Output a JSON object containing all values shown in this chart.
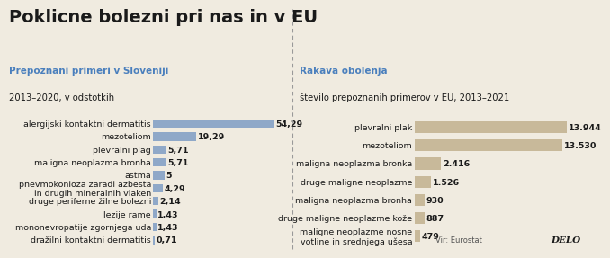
{
  "title": "Poklicne bolezni pri nas in v EU",
  "left_subtitle1": "Prepoznani primeri v Sloveniji",
  "left_subtitle2": "2013–2020, v odstotkih",
  "right_subtitle1": "Rakava obolenja",
  "right_subtitle2": "število prepoznanih primerov v EU, 2013–2021",
  "source": "Vir: Eurostat",
  "logo": "DELO",
  "left_labels": [
    "alergijski kontaktni dermatitis",
    "mezoteliom",
    "plevralni plag",
    "maligna neoplazma bronha",
    "astma",
    "pnevmokonioza zaradi azbesta\nin drugih mineralnih vlaken",
    "druge periferne žilne bolezni",
    "lezije rame",
    "mononevropatije zgornjega uda",
    "dražilni kontaktni dermatitis"
  ],
  "left_values": [
    54.29,
    19.29,
    5.71,
    5.71,
    5.0,
    4.29,
    2.14,
    1.43,
    1.43,
    0.71
  ],
  "left_value_labels": [
    "54,29",
    "19,29",
    "5,71",
    "5,71",
    "5",
    "4,29",
    "2,14",
    "1,43",
    "1,43",
    "0,71"
  ],
  "left_bar_color": "#8fa8c8",
  "right_labels": [
    "plevralni plak",
    "mezoteliom",
    "maligna neoplazma bronka",
    "druge maligne neoplazme",
    "maligna neoplazma bronha",
    "druge maligne neoplazme kože",
    "maligne neoplazme nosne\nvotline in srednjega ušesa"
  ],
  "right_values": [
    13944,
    13530,
    2416,
    1526,
    930,
    887,
    479
  ],
  "right_value_labels": [
    "13.944",
    "13.530",
    "2.416",
    "1.526",
    "930",
    "887",
    "479"
  ],
  "right_bar_color": "#c8b99a",
  "bg_color": "#f0ebe0",
  "title_color": "#1a1a1a",
  "subtitle_color": "#4a7fbd",
  "text_color": "#1a1a1a",
  "label_fontsize": 6.8,
  "value_fontsize": 6.8,
  "title_fontsize": 14,
  "subtitle1_fontsize": 7.5,
  "subtitle2_fontsize": 7.2
}
